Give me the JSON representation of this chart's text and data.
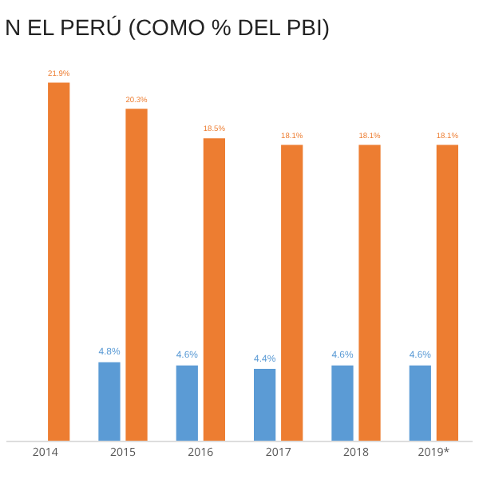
{
  "chart_data": {
    "type": "bar",
    "title": "N EL PERÚ (COMO % DEL PBI)",
    "categories": [
      "2014",
      "2015",
      "2016",
      "2017",
      "2018",
      "2019*"
    ],
    "series": [
      {
        "color": "#5b9bd5",
        "values": [
          null,
          4.8,
          4.6,
          4.4,
          4.6,
          4.6
        ],
        "value_labels": [
          null,
          "4.8%",
          "4.6%",
          "4.4%",
          "4.6%",
          "4.6%"
        ]
      },
      {
        "color": "#ed7d31",
        "values": [
          21.9,
          20.3,
          18.5,
          18.1,
          18.1,
          18.1
        ],
        "value_labels": [
          "21.9%",
          "20.3%",
          "18.5%",
          "18.1%",
          "18.1%",
          "18.1%"
        ]
      }
    ],
    "tick_labels": "x",
    "grid": false
  }
}
